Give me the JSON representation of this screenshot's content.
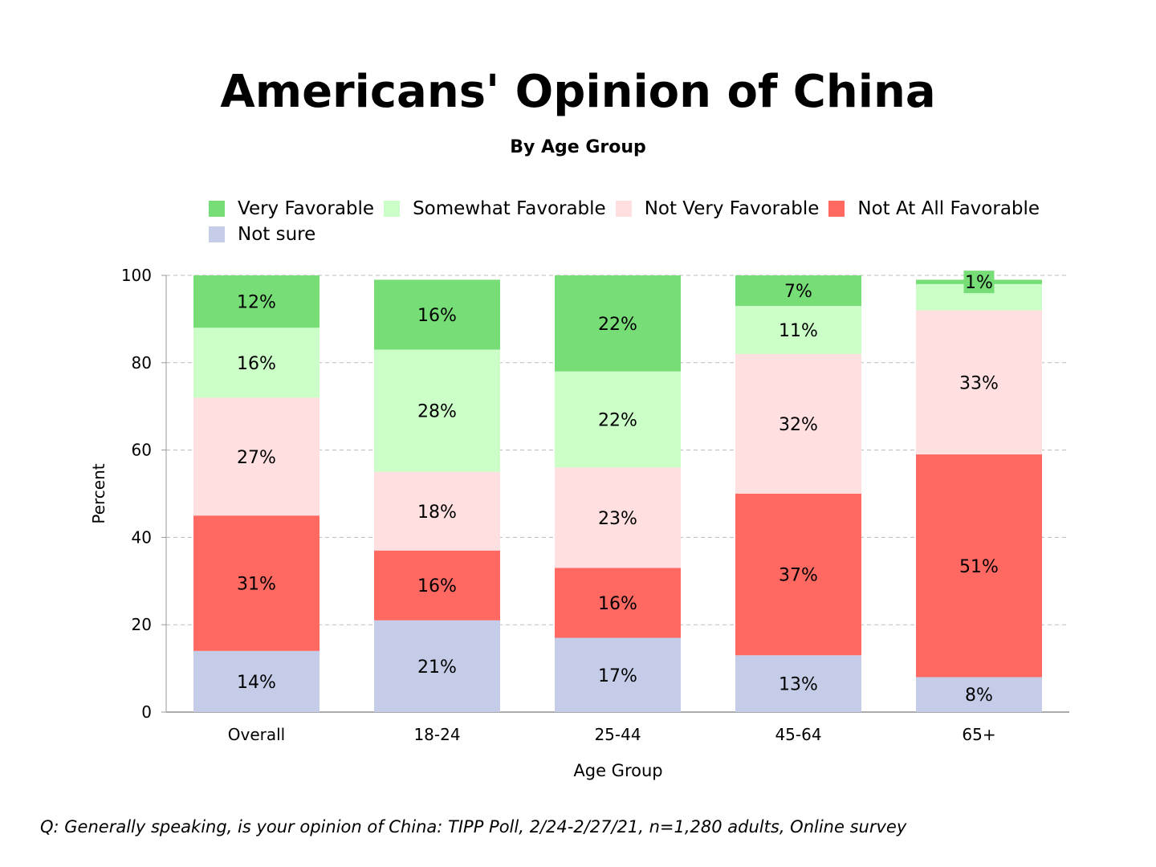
{
  "chart_data": {
    "type": "bar",
    "stacked": true,
    "title": "Americans' Opinion of China",
    "subtitle": "By Age Group",
    "xlabel": "Age Group",
    "ylabel": "Percent",
    "ylim": [
      0,
      100
    ],
    "yticks": [
      0,
      20,
      40,
      60,
      80,
      100
    ],
    "grid": true,
    "legend_position": "top",
    "categories": [
      "Overall",
      "18-24",
      "25-44",
      "45-64",
      "65+"
    ],
    "series": [
      {
        "name": "Not sure",
        "color": "#c5cce8",
        "values": [
          14,
          21,
          17,
          13,
          8
        ],
        "show_labels": [
          true,
          true,
          true,
          true,
          true
        ]
      },
      {
        "name": "Not At All Favorable",
        "color": "#ff6961",
        "values": [
          31,
          16,
          16,
          37,
          51
        ],
        "show_labels": [
          true,
          true,
          true,
          true,
          true
        ]
      },
      {
        "name": "Not Very Favorable",
        "color": "#ffdfe0",
        "values": [
          27,
          18,
          23,
          32,
          33
        ],
        "show_labels": [
          true,
          true,
          true,
          true,
          true
        ]
      },
      {
        "name": "Somewhat Favorable",
        "color": "#ccffc8",
        "values": [
          16,
          28,
          22,
          11,
          6
        ],
        "show_labels": [
          true,
          true,
          true,
          true,
          false
        ]
      },
      {
        "name": "Very Favorable",
        "color": "#77dd77",
        "values": [
          12,
          16,
          22,
          7,
          1
        ],
        "show_labels": [
          true,
          true,
          true,
          true,
          true
        ]
      }
    ],
    "legend_order": [
      "Very Favorable",
      "Somewhat Favorable",
      "Not Very Favorable",
      "Not At All Favorable",
      "Not sure"
    ]
  },
  "footer": "Q:  Generally speaking, is your opinion of China:  TIPP Poll, 2/24-2/27/21, n=1,280 adults, Online survey"
}
